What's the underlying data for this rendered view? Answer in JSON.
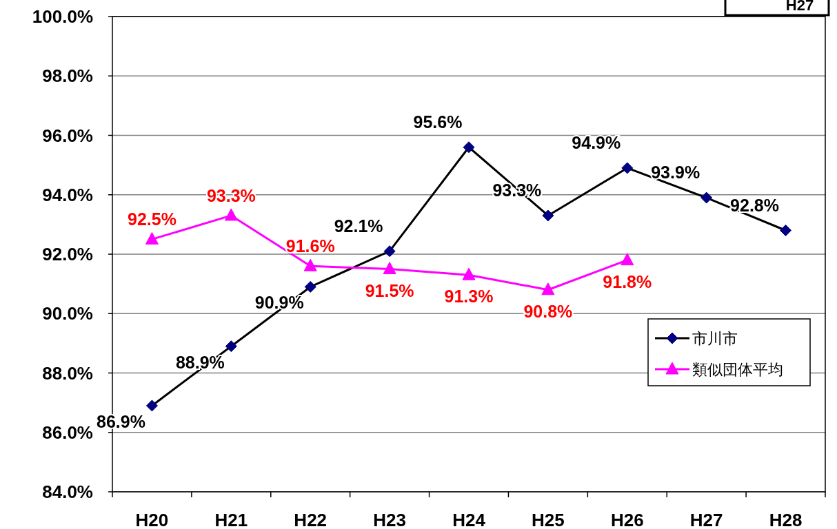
{
  "chart_data": {
    "type": "line",
    "categories": [
      "H20",
      "H21",
      "H22",
      "H23",
      "H24",
      "H25",
      "H26",
      "H27",
      "H28"
    ],
    "series": [
      {
        "name": "市川市",
        "color": "#000080",
        "marker": "diamond",
        "values": [
          86.9,
          88.9,
          90.9,
          92.1,
          95.6,
          93.3,
          94.9,
          93.9,
          92.8
        ],
        "value_labels": [
          "86.9%",
          "88.9%",
          "90.9%",
          "92.1%",
          "95.6%",
          "93.3%",
          "94.9%",
          "93.9%",
          "92.8%"
        ]
      },
      {
        "name": "類似団体平均",
        "color": "#ff00ff",
        "marker": "triangle",
        "values": [
          92.5,
          93.3,
          91.6,
          91.5,
          91.3,
          90.8,
          91.8,
          null,
          null
        ],
        "value_labels": [
          "92.5%",
          "93.3%",
          "91.6%",
          "91.5%",
          "91.3%",
          "90.8%",
          "91.8%",
          null,
          null
        ]
      }
    ],
    "ylim": [
      84,
      100
    ],
    "yticks": [
      {
        "value": 84,
        "label": "84.0%"
      },
      {
        "value": 86,
        "label": "86.0%"
      },
      {
        "value": 88,
        "label": "88.0%"
      },
      {
        "value": 90,
        "label": "90.0%"
      },
      {
        "value": 92,
        "label": "92.0%"
      },
      {
        "value": 94,
        "label": "94.0%"
      },
      {
        "value": 96,
        "label": "96.0%"
      },
      {
        "value": 98,
        "label": "98.0%"
      },
      {
        "value": 100,
        "label": "100.0%"
      }
    ],
    "grid": "y",
    "legend": "right",
    "annotations": [
      "H27"
    ]
  }
}
